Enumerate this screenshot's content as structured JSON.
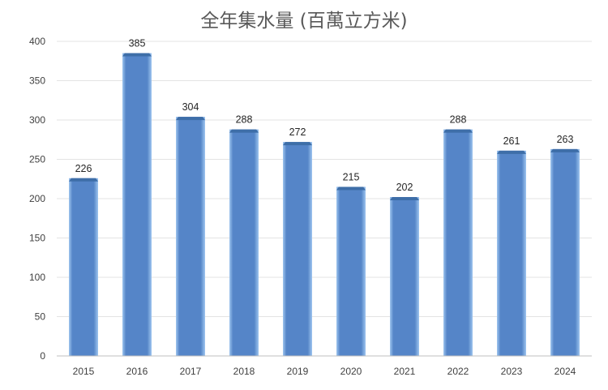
{
  "chart_data": {
    "type": "bar",
    "title": "全年集水量 (百萬立方米)",
    "categories": [
      "2015",
      "2016",
      "2017",
      "2018",
      "2019",
      "2020",
      "2021",
      "2022",
      "2023",
      "2024"
    ],
    "values": [
      226,
      385,
      304,
      288,
      272,
      215,
      202,
      288,
      261,
      263
    ],
    "ylim": [
      0,
      400
    ],
    "yticks": [
      0,
      50,
      100,
      150,
      200,
      250,
      300,
      350,
      400
    ],
    "grid": true,
    "data_labels": true,
    "colors": {
      "bar": "#5585c8",
      "bar_top": "#3e6ea8",
      "bar_edge": "#9ec5ef",
      "grid": "#e3e3e3",
      "axis": "#bfbfbf"
    }
  }
}
